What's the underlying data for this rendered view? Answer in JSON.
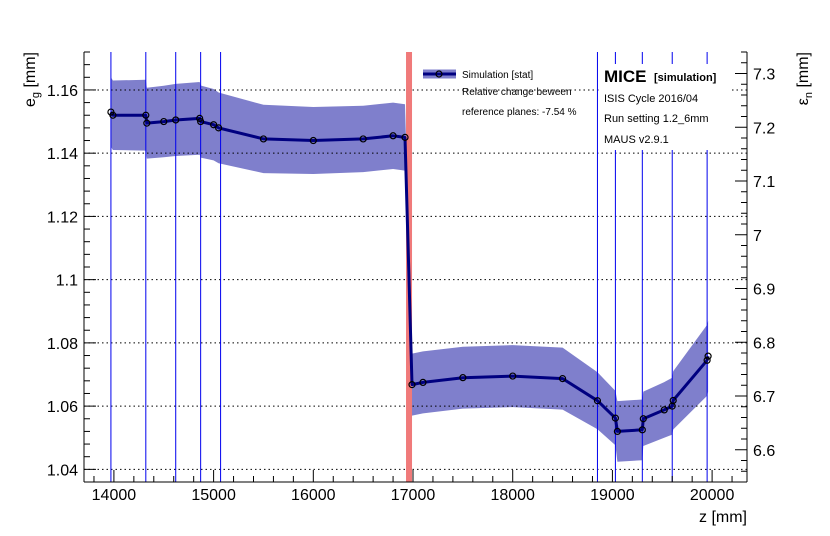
{
  "chart_data": {
    "type": "line",
    "xlabel": "z [mm]",
    "ylabel_left": "e_g [mm]",
    "ylabel_right": "ε_n [mm]",
    "xlim": [
      13700,
      20350
    ],
    "ylim_left": [
      1.036,
      1.172
    ],
    "ylim_right": [
      6.54,
      7.34
    ],
    "x_ticks": [
      14000,
      15000,
      16000,
      17000,
      18000,
      19000,
      20000
    ],
    "x_tick_labels": [
      "14000",
      "15000",
      "16000",
      "17000",
      "18000",
      "19000",
      "20000"
    ],
    "y_left_ticks": [
      1.04,
      1.06,
      1.08,
      1.1,
      1.12,
      1.14,
      1.16
    ],
    "y_left_tick_labels": [
      "1.04",
      "1.06",
      "1.08",
      "1.1",
      "1.12",
      "1.14",
      "1.16"
    ],
    "y_right_ticks": [
      6.6,
      6.7,
      6.8,
      6.9,
      7.0,
      7.1,
      7.2,
      7.3
    ],
    "y_right_tick_labels": [
      "6.6",
      "6.7",
      "6.8",
      "6.9",
      "7",
      "7.1",
      "7.2",
      "7.3"
    ],
    "grid": "horizontal dotted",
    "legend_placement": "top-center",
    "series": [
      {
        "name": "Simulation [stat]",
        "x": [
          13970,
          13990,
          14320,
          14330,
          14500,
          14620,
          14860,
          14870,
          15000,
          15050,
          15500,
          16000,
          16500,
          16800,
          16920,
          16990,
          17100,
          17500,
          18000,
          18500,
          18850,
          19030,
          19050,
          19300,
          19310,
          19520,
          19600,
          19610,
          19950,
          19960
        ],
        "y": [
          1.153,
          1.152,
          1.152,
          1.1495,
          1.15,
          1.1505,
          1.151,
          1.15,
          1.149,
          1.148,
          1.1445,
          1.144,
          1.1445,
          1.1455,
          1.145,
          1.0668,
          1.0675,
          1.069,
          1.0695,
          1.0687,
          1.0617,
          1.0562,
          1.052,
          1.0525,
          1.056,
          1.0588,
          1.06,
          1.0618,
          1.0745,
          1.0758
        ],
        "band_half_width": [
          0.011,
          0.011,
          0.0112,
          0.0112,
          0.0113,
          0.0114,
          0.0115,
          0.0114,
          0.0113,
          0.0112,
          0.0108,
          0.0106,
          0.0105,
          0.0105,
          0.0105,
          0.0098,
          0.0098,
          0.0098,
          0.0098,
          0.0098,
          0.009,
          0.0086,
          0.0096,
          0.0096,
          0.0086,
          0.0088,
          0.009,
          0.0092,
          0.0112,
          0.0112
        ]
      }
    ],
    "reference_planes_z": [
      13970,
      14320,
      14620,
      14870,
      15070,
      18850,
      19030,
      19300,
      19600,
      19950
    ],
    "absorber_z": 16960,
    "legend_text": "Simulation [stat]",
    "annotation_lines": [
      "Relative change beween",
      "reference planes: -7.54 %"
    ],
    "info_lines": [
      "ISIS Cycle 2016/04",
      "Run setting 1.2_6mm",
      "MAUS v2.9.1"
    ],
    "mice_label": "MICE",
    "mice_sublabel": "[simulation]",
    "colors": {
      "line": "#000080",
      "band": "#7f7fcc",
      "reference_line": "#0000ee",
      "absorber": "#f07a7a",
      "grid": "#000000"
    }
  }
}
